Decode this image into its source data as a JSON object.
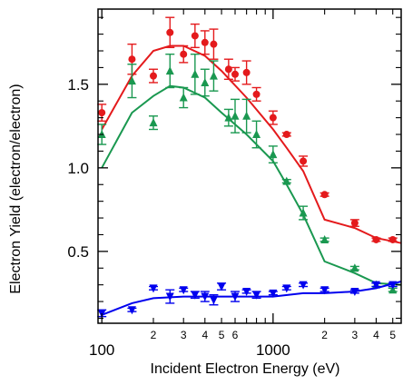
{
  "chart_data": {
    "type": "scatter",
    "title": "",
    "xlabel": "Incident Electron Energy (eV)",
    "ylabel": "Electron Yield (electron/electron)",
    "xscale": "log",
    "xlim": [
      95,
      5600
    ],
    "ylim": [
      0.07,
      1.95
    ],
    "grid": false,
    "legend": "none",
    "x_major_ticks": [
      {
        "value": 100,
        "label": "100"
      },
      {
        "value": 1000,
        "label": "1000"
      }
    ],
    "x_minor_ticks": [
      {
        "value": 200,
        "label": "2"
      },
      {
        "value": 300,
        "label": "3"
      },
      {
        "value": 400,
        "label": "4"
      },
      {
        "value": 500,
        "label": "5"
      },
      {
        "value": 600,
        "label": "6"
      },
      {
        "value": 700,
        "label": ""
      },
      {
        "value": 800,
        "label": ""
      },
      {
        "value": 900,
        "label": ""
      },
      {
        "value": 2000,
        "label": "2"
      },
      {
        "value": 3000,
        "label": "3"
      },
      {
        "value": 4000,
        "label": "4"
      },
      {
        "value": 5000,
        "label": "5"
      }
    ],
    "y_ticks": [
      {
        "value": 0.5,
        "label": "0.5"
      },
      {
        "value": 1.0,
        "label": "1.0"
      },
      {
        "value": 1.5,
        "label": "1.5"
      }
    ],
    "series": [
      {
        "color": "#e41a1c",
        "marker": "circle",
        "points": [
          {
            "x": 100,
            "y": 1.33,
            "err": 0.05
          },
          {
            "x": 150,
            "y": 1.65,
            "err": 0.09
          },
          {
            "x": 200,
            "y": 1.55,
            "err": 0.04
          },
          {
            "x": 250,
            "y": 1.81,
            "err": 0.09
          },
          {
            "x": 300,
            "y": 1.68,
            "err": 0.05
          },
          {
            "x": 350,
            "y": 1.79,
            "err": 0.07
          },
          {
            "x": 400,
            "y": 1.75,
            "err": 0.07
          },
          {
            "x": 450,
            "y": 1.74,
            "err": 0.09
          },
          {
            "x": 550,
            "y": 1.59,
            "err": 0.06
          },
          {
            "x": 600,
            "y": 1.56,
            "err": 0.04
          },
          {
            "x": 700,
            "y": 1.57,
            "err": 0.07
          },
          {
            "x": 800,
            "y": 1.44,
            "err": 0.04
          },
          {
            "x": 1000,
            "y": 1.3,
            "err": 0.04
          },
          {
            "x": 1200,
            "y": 1.2,
            "err": 0.01
          },
          {
            "x": 1500,
            "y": 1.04,
            "err": 0.03
          },
          {
            "x": 2000,
            "y": 0.84,
            "err": 0.01
          },
          {
            "x": 3000,
            "y": 0.67,
            "err": 0.02
          },
          {
            "x": 4000,
            "y": 0.57,
            "err": 0.01
          },
          {
            "x": 5000,
            "y": 0.57,
            "err": 0.01
          }
        ],
        "curve": [
          {
            "x": 100,
            "y": 1.23
          },
          {
            "x": 150,
            "y": 1.55
          },
          {
            "x": 200,
            "y": 1.7
          },
          {
            "x": 250,
            "y": 1.73
          },
          {
            "x": 300,
            "y": 1.73
          },
          {
            "x": 400,
            "y": 1.67
          },
          {
            "x": 500,
            "y": 1.58
          },
          {
            "x": 700,
            "y": 1.42
          },
          {
            "x": 1000,
            "y": 1.23
          },
          {
            "x": 1200,
            "y": 1.12
          },
          {
            "x": 1500,
            "y": 0.98
          },
          {
            "x": 2000,
            "y": 0.69
          },
          {
            "x": 3000,
            "y": 0.64
          },
          {
            "x": 4000,
            "y": 0.58
          },
          {
            "x": 5600,
            "y": 0.55
          }
        ]
      },
      {
        "color": "#1a9850",
        "marker": "triangle-up",
        "points": [
          {
            "x": 100,
            "y": 1.2,
            "err": 0.06
          },
          {
            "x": 150,
            "y": 1.52,
            "err": 0.1
          },
          {
            "x": 200,
            "y": 1.27,
            "err": 0.04
          },
          {
            "x": 250,
            "y": 1.58,
            "err": 0.1
          },
          {
            "x": 300,
            "y": 1.42,
            "err": 0.06
          },
          {
            "x": 350,
            "y": 1.56,
            "err": 0.12
          },
          {
            "x": 400,
            "y": 1.51,
            "err": 0.08
          },
          {
            "x": 450,
            "y": 1.55,
            "err": 0.09
          },
          {
            "x": 550,
            "y": 1.3,
            "err": 0.05
          },
          {
            "x": 600,
            "y": 1.31,
            "err": 0.1
          },
          {
            "x": 700,
            "y": 1.31,
            "err": 0.1
          },
          {
            "x": 800,
            "y": 1.2,
            "err": 0.08
          },
          {
            "x": 1000,
            "y": 1.08,
            "err": 0.05
          },
          {
            "x": 1200,
            "y": 0.92,
            "err": 0.01
          },
          {
            "x": 1500,
            "y": 0.73,
            "err": 0.04
          },
          {
            "x": 2000,
            "y": 0.57,
            "err": 0.01
          },
          {
            "x": 3000,
            "y": 0.4,
            "err": 0.01
          },
          {
            "x": 4000,
            "y": 0.3,
            "err": 0.01
          },
          {
            "x": 5000,
            "y": 0.27,
            "err": 0.01
          }
        ],
        "curve": [
          {
            "x": 100,
            "y": 1.0
          },
          {
            "x": 150,
            "y": 1.33
          },
          {
            "x": 200,
            "y": 1.43
          },
          {
            "x": 250,
            "y": 1.49
          },
          {
            "x": 300,
            "y": 1.48
          },
          {
            "x": 400,
            "y": 1.42
          },
          {
            "x": 500,
            "y": 1.33
          },
          {
            "x": 700,
            "y": 1.2
          },
          {
            "x": 1000,
            "y": 1.04
          },
          {
            "x": 1200,
            "y": 0.9
          },
          {
            "x": 1500,
            "y": 0.72
          },
          {
            "x": 2000,
            "y": 0.44
          },
          {
            "x": 3000,
            "y": 0.37
          },
          {
            "x": 4000,
            "y": 0.31
          },
          {
            "x": 5600,
            "y": 0.3
          }
        ]
      },
      {
        "color": "#0000ee",
        "marker": "triangle-down",
        "points": [
          {
            "x": 100,
            "y": 0.13,
            "err": 0.02
          },
          {
            "x": 150,
            "y": 0.15,
            "err": 0.01
          },
          {
            "x": 200,
            "y": 0.28,
            "err": 0.01
          },
          {
            "x": 250,
            "y": 0.23,
            "err": 0.04
          },
          {
            "x": 300,
            "y": 0.27,
            "err": 0.01
          },
          {
            "x": 350,
            "y": 0.24,
            "err": 0.02
          },
          {
            "x": 400,
            "y": 0.23,
            "err": 0.03
          },
          {
            "x": 450,
            "y": 0.21,
            "err": 0.03
          },
          {
            "x": 500,
            "y": 0.29,
            "err": 0.02
          },
          {
            "x": 600,
            "y": 0.23,
            "err": 0.03
          },
          {
            "x": 700,
            "y": 0.26,
            "err": 0.01
          },
          {
            "x": 800,
            "y": 0.24,
            "err": 0.02
          },
          {
            "x": 1000,
            "y": 0.25,
            "err": 0.01
          },
          {
            "x": 1200,
            "y": 0.28,
            "err": 0.01
          },
          {
            "x": 1500,
            "y": 0.3,
            "err": 0.01
          },
          {
            "x": 2000,
            "y": 0.27,
            "err": 0.01
          },
          {
            "x": 3000,
            "y": 0.26,
            "err": 0.01
          },
          {
            "x": 4000,
            "y": 0.3,
            "err": 0.01
          },
          {
            "x": 5000,
            "y": 0.3,
            "err": 0.01
          }
        ],
        "curve": [
          {
            "x": 100,
            "y": 0.12
          },
          {
            "x": 150,
            "y": 0.19
          },
          {
            "x": 200,
            "y": 0.22
          },
          {
            "x": 300,
            "y": 0.23
          },
          {
            "x": 400,
            "y": 0.23
          },
          {
            "x": 600,
            "y": 0.23
          },
          {
            "x": 1000,
            "y": 0.23
          },
          {
            "x": 1500,
            "y": 0.25
          },
          {
            "x": 2000,
            "y": 0.25
          },
          {
            "x": 3000,
            "y": 0.26
          },
          {
            "x": 4000,
            "y": 0.28
          },
          {
            "x": 5600,
            "y": 0.32
          }
        ]
      }
    ]
  }
}
